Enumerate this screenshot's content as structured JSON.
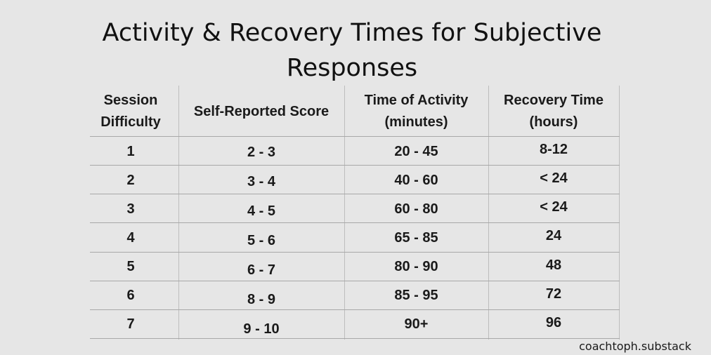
{
  "title_line1": "Activity & Recovery Times for Subjective",
  "title_line2": "Responses",
  "headers": {
    "session": "Session\nDifficulty",
    "score": "Self-Reported Score",
    "activity": "Time of Activity\n(minutes)",
    "recovery": "Recovery Time\n(hours)"
  },
  "rows": [
    {
      "session": "1",
      "score": "2 - 3",
      "activity": "20 - 45",
      "recovery": "8-12"
    },
    {
      "session": "2",
      "score": "3 - 4",
      "activity": "40 - 60",
      "recovery": "< 24"
    },
    {
      "session": "3",
      "score": "4 - 5",
      "activity": "60 - 80",
      "recovery": "< 24"
    },
    {
      "session": "4",
      "score": "5 - 6",
      "activity": "65 - 85",
      "recovery": "24"
    },
    {
      "session": "5",
      "score": "6 - 7",
      "activity": "80 - 90",
      "recovery": "48"
    },
    {
      "session": "6",
      "score": "8 - 9",
      "activity": "85 - 95",
      "recovery": "72"
    },
    {
      "session": "7",
      "score": "9 - 10",
      "activity": "90+",
      "recovery": "96"
    }
  ],
  "footer": "coachtoph.substack"
}
